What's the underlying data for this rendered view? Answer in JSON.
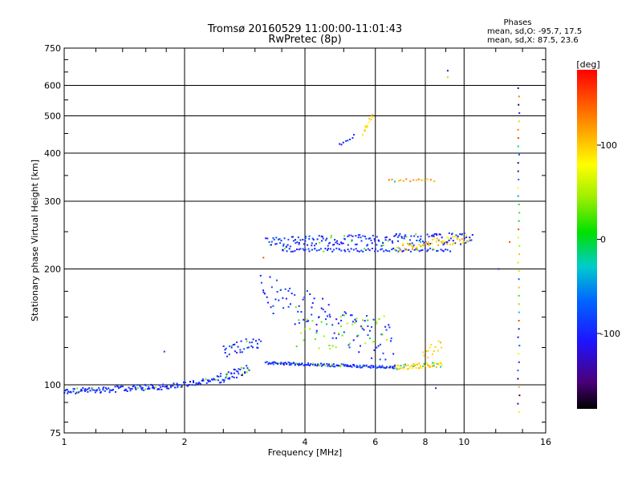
{
  "chart_data": {
    "type": "scatter",
    "title": "Tromsø 20160529 11:00:00-11:01:43",
    "subtitle": "RwPretec (8p)",
    "xlabel": "Frequency [MHz]",
    "ylabel": "Stationary phase Virtual Height [km]",
    "x_scale": "log",
    "y_scale": "log",
    "xlim": [
      1,
      16
    ],
    "ylim": [
      75,
      750
    ],
    "x_ticks": [
      1,
      2,
      4,
      6,
      8,
      10,
      16
    ],
    "y_ticks": [
      75,
      100,
      200,
      300,
      400,
      500,
      600,
      750
    ],
    "grid": true,
    "stats": {
      "header": "Phases",
      "line1": "mean, sd,O: -95.7, 17.5",
      "line2": "mean, sd,X:  87.5, 23.6"
    },
    "colorbar": {
      "label": "[deg]",
      "ticks": [
        100,
        0,
        -100
      ],
      "range": [
        -180,
        180
      ]
    },
    "traces": [
      {
        "from": [
          1.0,
          96
        ],
        "to": [
          1.8,
          99
        ],
        "n": 110,
        "jitter": 0.018,
        "color": -95
      },
      {
        "from": [
          1.8,
          99
        ],
        "to": [
          2.4,
          103
        ],
        "n": 50,
        "jitter": 0.015,
        "color": -95
      },
      {
        "from": [
          2.4,
          103
        ],
        "to": [
          2.9,
          110
        ],
        "n": 45,
        "jitter": 0.03,
        "color": -95
      },
      {
        "from": [
          2.5,
          122
        ],
        "to": [
          3.1,
          130
        ],
        "n": 35,
        "jitter": 0.04,
        "color": -95
      },
      {
        "from": [
          3.2,
          114
        ],
        "to": [
          6.7,
          111
        ],
        "n": 140,
        "jitter": 0.008,
        "color": -95
      },
      {
        "from": [
          6.7,
          111
        ],
        "to": [
          8.8,
          113
        ],
        "n": 60,
        "jitter": 0.015,
        "color": 95
      },
      {
        "from": [
          3.1,
          175
        ],
        "to": [
          6.7,
          125
        ],
        "n": 110,
        "jitter": 0.12,
        "color": -95
      },
      {
        "from": [
          3.8,
          135
        ],
        "to": [
          6.4,
          140
        ],
        "n": 40,
        "jitter": 0.1,
        "color": 40
      },
      {
        "from": [
          7.9,
          118
        ],
        "to": [
          8.8,
          125
        ],
        "n": 14,
        "jitter": 0.05,
        "color": 95
      },
      {
        "from": [
          3.2,
          235
        ],
        "to": [
          10.5,
          240
        ],
        "n": 190,
        "jitter": 0.035,
        "color": -95
      },
      {
        "from": [
          3.5,
          224
        ],
        "to": [
          9.2,
          224
        ],
        "n": 90,
        "jitter": 0.01,
        "color": -95
      },
      {
        "from": [
          6.8,
          228
        ],
        "to": [
          10.3,
          240
        ],
        "n": 55,
        "jitter": 0.025,
        "color": 100
      },
      {
        "from": [
          6.5,
          340
        ],
        "to": [
          8.4,
          340
        ],
        "n": 16,
        "jitter": 0.01,
        "color": 120
      },
      {
        "from": [
          4.9,
          420
        ],
        "to": [
          5.3,
          445
        ],
        "n": 8,
        "jitter": 0.01,
        "color": -95
      },
      {
        "from": [
          5.6,
          450
        ],
        "to": [
          5.9,
          505
        ],
        "n": 14,
        "jitter": 0.015,
        "color": 100
      },
      {
        "from": [
          13.7,
          85
        ],
        "to": [
          13.7,
          590
        ],
        "n": 40,
        "jitter": 0.0,
        "color": 0
      }
    ],
    "points": [
      {
        "x": 9.1,
        "y": 655,
        "color": -130
      },
      {
        "x": 9.1,
        "y": 630,
        "color": 45
      },
      {
        "x": 3.15,
        "y": 214,
        "color": 150
      },
      {
        "x": 12.2,
        "y": 200,
        "color": -95
      },
      {
        "x": 13.0,
        "y": 235,
        "color": 150
      },
      {
        "x": 1.78,
        "y": 122,
        "color": -95
      },
      {
        "x": 8.5,
        "y": 98,
        "color": -95
      }
    ]
  }
}
